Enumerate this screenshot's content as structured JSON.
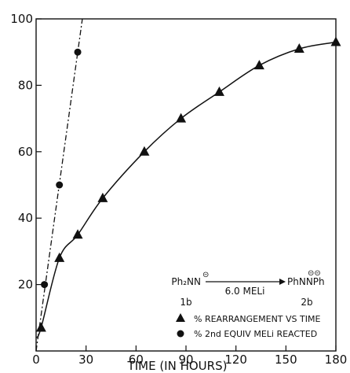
{
  "chart_data": {
    "type": "scatter",
    "xlabel": "TIME (IN HOURS)",
    "ylabel": "",
    "xlim": [
      0,
      180
    ],
    "ylim": [
      0,
      100
    ],
    "xticks": [
      "0",
      "30",
      "60",
      "90",
      "120",
      "150",
      "180"
    ],
    "yticks": [
      "20",
      "40",
      "60",
      "80",
      "100"
    ],
    "grid": false,
    "series": [
      {
        "name": "% REARRANGEMENT VS TIME",
        "marker": "triangle",
        "x": [
          3,
          14,
          25,
          40,
          65,
          87,
          110,
          134,
          158,
          181
        ],
        "y": [
          7,
          28,
          35,
          46,
          60,
          70,
          78,
          86,
          91,
          93
        ],
        "fit_line": "solid-curve"
      },
      {
        "name": "% 2nd EQUIV MELi REACTED",
        "marker": "circle",
        "x": [
          5,
          14,
          25
        ],
        "y": [
          20,
          50,
          90
        ],
        "fit_line": "dash-dot-straight"
      }
    ],
    "scheme": {
      "reactant": "Ph₂NN",
      "reactant_charge": "⊝",
      "reagent": "6.0 MELi",
      "product": "PhNNPh",
      "product_charge": "⊝⊝",
      "reactant_label": "1b",
      "product_label": "2b"
    },
    "legend_placement": "bottom-right"
  },
  "colors": {
    "ink": "#111111",
    "background": "#ffffff"
  }
}
